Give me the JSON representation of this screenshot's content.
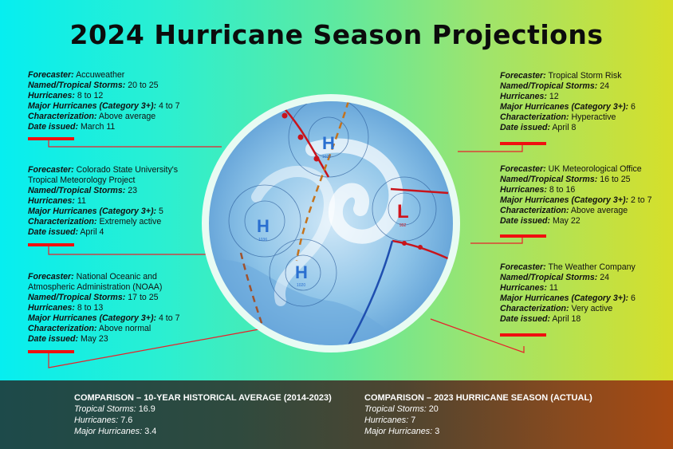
{
  "title": "2024 Hurricane Season Projections",
  "labels": {
    "forecaster": "Forecaster:",
    "storms": "Named/Tropical Storms:",
    "hurricanes": "Hurricanes:",
    "major": "Major Hurricanes (Category 3+):",
    "characterization": "Characterization:",
    "date": "Date issued:"
  },
  "forecasts": [
    {
      "forecaster": "Accuweather",
      "storms": "20 to 25",
      "hurricanes": "8 to 12",
      "major": "4 to 7",
      "characterization": "Above average",
      "date": "March 11"
    },
    {
      "forecaster": "Colorado State University's",
      "forecaster2": "Tropical Meteorology Project",
      "storms": "23",
      "hurricanes": "11",
      "major": "5",
      "characterization": "Extremely active",
      "date": "April 4"
    },
    {
      "forecaster": "National Oceanic and",
      "forecaster2": "Atmospheric Administration (NOAA)",
      "storms": "17 to 25",
      "hurricanes": "8 to 13",
      "major": "4 to 7",
      "characterization": "Above normal",
      "date": "May 23"
    },
    {
      "forecaster": "Tropical Storm Risk",
      "storms": "24",
      "hurricanes": "12",
      "major": "6",
      "characterization": "Hyperactive",
      "date": "April 8"
    },
    {
      "forecaster": "UK Meteorological Office",
      "storms": "16 to 25",
      "hurricanes": "8 to 16",
      "major": "2 to 7",
      "characterization": "Above average",
      "date": "May 22"
    },
    {
      "forecaster": "The Weather Company",
      "storms": "24",
      "hurricanes": "11",
      "major": "6",
      "characterization": "Very active",
      "date": "April 18"
    }
  ],
  "map": {
    "highs": [
      "H",
      "H",
      "H"
    ],
    "high_values": [
      "1025",
      "1036",
      "1020"
    ],
    "low": "L",
    "low_value": "992"
  },
  "comparison": [
    {
      "heading": "COMPARISON – 10-YEAR HISTORICAL AVERAGE (2014-2023)",
      "storms_label": "Tropical Storms:",
      "storms": "16.9",
      "hurricanes_label": "Hurricanes:",
      "hurricanes": "7.6",
      "major_label": "Major Hurricanes:",
      "major": "3.4"
    },
    {
      "heading": "COMPARISON – 2023 HURRICANE SEASON (ACTUAL)",
      "storms_label": "Tropical Storms:",
      "storms": "20",
      "hurricanes_label": "Hurricanes:",
      "hurricanes": "7",
      "major_label": "Major Hurricanes:",
      "major": "3"
    }
  ],
  "colors": {
    "accent": "#f01010"
  }
}
